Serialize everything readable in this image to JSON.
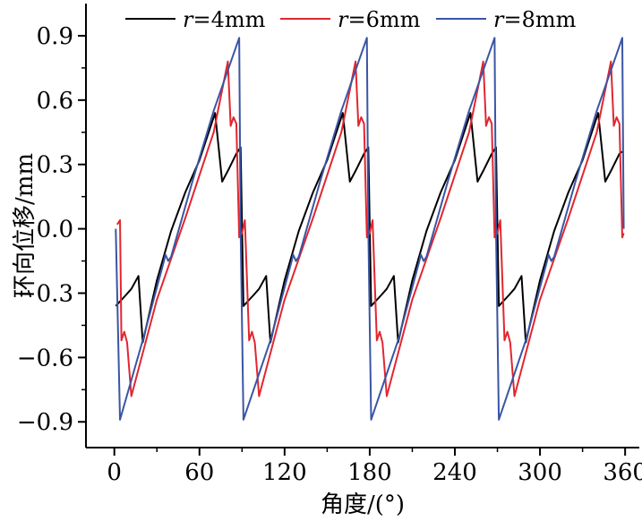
{
  "chart_data": {
    "type": "line",
    "title": "",
    "xlabel": "角度/(°)",
    "ylabel": "环向位移/mm",
    "xlim": [
      -20,
      370
    ],
    "ylim": [
      -1.02,
      1.05
    ],
    "xticks": [
      0,
      60,
      120,
      180,
      240,
      300,
      360
    ],
    "yticks": [
      -0.9,
      -0.6,
      -0.3,
      0.0,
      0.3,
      0.6,
      0.9
    ],
    "xtick_labels": [
      "0",
      "60",
      "120",
      "180",
      "240",
      "300",
      "360"
    ],
    "ytick_labels": [
      "−0.9",
      "−0.6",
      "−0.3",
      "0.0",
      "0.3",
      "0.6",
      "0.9"
    ],
    "grid": false,
    "legend_position": "top",
    "series": [
      {
        "name": "r=4mm",
        "legend_var": "r",
        "legend_rest": "=4mm",
        "color": "#000000",
        "points": [
          [
            1,
            -0.36
          ],
          [
            8,
            -0.31
          ],
          [
            12,
            -0.28
          ],
          [
            17,
            -0.22
          ],
          [
            20,
            -0.53
          ],
          [
            30,
            -0.24
          ],
          [
            40,
            -0.01
          ],
          [
            50,
            0.17
          ],
          [
            60,
            0.32
          ],
          [
            71,
            0.54
          ],
          [
            76,
            0.22
          ],
          [
            80,
            0.27
          ],
          [
            86,
            0.35
          ],
          [
            89,
            0.38
          ],
          [
            91,
            -0.36
          ],
          [
            98,
            -0.31
          ],
          [
            102,
            -0.28
          ],
          [
            107,
            -0.22
          ],
          [
            110,
            -0.53
          ],
          [
            120,
            -0.24
          ],
          [
            130,
            -0.01
          ],
          [
            140,
            0.17
          ],
          [
            150,
            0.32
          ],
          [
            161,
            0.54
          ],
          [
            166,
            0.22
          ],
          [
            170,
            0.27
          ],
          [
            176,
            0.35
          ],
          [
            179,
            0.38
          ],
          [
            181,
            -0.36
          ],
          [
            188,
            -0.31
          ],
          [
            192,
            -0.28
          ],
          [
            197,
            -0.22
          ],
          [
            200,
            -0.53
          ],
          [
            210,
            -0.24
          ],
          [
            220,
            -0.01
          ],
          [
            230,
            0.17
          ],
          [
            240,
            0.32
          ],
          [
            251,
            0.54
          ],
          [
            256,
            0.22
          ],
          [
            260,
            0.27
          ],
          [
            266,
            0.35
          ],
          [
            269,
            0.38
          ],
          [
            271,
            -0.36
          ],
          [
            278,
            -0.31
          ],
          [
            282,
            -0.28
          ],
          [
            287,
            -0.22
          ],
          [
            290,
            -0.53
          ],
          [
            300,
            -0.24
          ],
          [
            310,
            -0.01
          ],
          [
            320,
            0.17
          ],
          [
            330,
            0.32
          ],
          [
            341,
            0.54
          ],
          [
            346,
            0.22
          ],
          [
            350,
            0.27
          ],
          [
            356,
            0.35
          ],
          [
            358,
            0.36
          ]
        ]
      },
      {
        "name": "r=6mm",
        "legend_var": "r",
        "legend_rest": "=6mm",
        "color": "#e2262f",
        "points": [
          [
            2,
            0.02
          ],
          [
            4,
            0.04
          ],
          [
            5,
            -0.52
          ],
          [
            7,
            -0.48
          ],
          [
            9,
            -0.53
          ],
          [
            12,
            -0.78
          ],
          [
            30,
            -0.33
          ],
          [
            50,
            0.05
          ],
          [
            70,
            0.45
          ],
          [
            80,
            0.78
          ],
          [
            82,
            0.48
          ],
          [
            84,
            0.52
          ],
          [
            86,
            0.49
          ],
          [
            88,
            -0.04
          ],
          [
            90,
            -0.02
          ],
          [
            92,
            0.04
          ],
          [
            95,
            -0.52
          ],
          [
            97,
            -0.48
          ],
          [
            99,
            -0.53
          ],
          [
            102,
            -0.78
          ],
          [
            120,
            -0.33
          ],
          [
            140,
            0.05
          ],
          [
            160,
            0.45
          ],
          [
            170,
            0.78
          ],
          [
            172,
            0.48
          ],
          [
            174,
            0.52
          ],
          [
            176,
            0.49
          ],
          [
            178,
            -0.04
          ],
          [
            180,
            -0.02
          ],
          [
            182,
            0.04
          ],
          [
            185,
            -0.52
          ],
          [
            187,
            -0.48
          ],
          [
            189,
            -0.53
          ],
          [
            192,
            -0.78
          ],
          [
            210,
            -0.33
          ],
          [
            230,
            0.05
          ],
          [
            250,
            0.45
          ],
          [
            260,
            0.78
          ],
          [
            262,
            0.48
          ],
          [
            264,
            0.52
          ],
          [
            266,
            0.49
          ],
          [
            268,
            -0.04
          ],
          [
            270,
            -0.02
          ],
          [
            272,
            0.04
          ],
          [
            275,
            -0.52
          ],
          [
            277,
            -0.48
          ],
          [
            279,
            -0.53
          ],
          [
            282,
            -0.78
          ],
          [
            300,
            -0.33
          ],
          [
            320,
            0.05
          ],
          [
            340,
            0.45
          ],
          [
            350,
            0.78
          ],
          [
            352,
            0.48
          ],
          [
            354,
            0.52
          ],
          [
            356,
            0.49
          ],
          [
            358,
            -0.04
          ],
          [
            359,
            -0.02
          ]
        ]
      },
      {
        "name": "r=8mm",
        "legend_var": "r",
        "legend_rest": "=8mm",
        "color": "#3a55a4",
        "points": [
          [
            1,
            0.0
          ],
          [
            4,
            -0.89
          ],
          [
            20,
            -0.52
          ],
          [
            35,
            -0.15
          ],
          [
            36,
            -0.12
          ],
          [
            38,
            -0.15
          ],
          [
            40,
            -0.13
          ],
          [
            55,
            0.22
          ],
          [
            70,
            0.55
          ],
          [
            88,
            0.89
          ],
          [
            89,
            0.0
          ],
          [
            91,
            -0.89
          ],
          [
            110,
            -0.52
          ],
          [
            125,
            -0.15
          ],
          [
            126,
            -0.12
          ],
          [
            128,
            -0.15
          ],
          [
            130,
            -0.13
          ],
          [
            145,
            0.22
          ],
          [
            160,
            0.55
          ],
          [
            178,
            0.89
          ],
          [
            179,
            0.0
          ],
          [
            181,
            -0.89
          ],
          [
            200,
            -0.52
          ],
          [
            215,
            -0.15
          ],
          [
            216,
            -0.12
          ],
          [
            218,
            -0.15
          ],
          [
            220,
            -0.13
          ],
          [
            235,
            0.22
          ],
          [
            250,
            0.55
          ],
          [
            268,
            0.89
          ],
          [
            269,
            0.0
          ],
          [
            271,
            -0.89
          ],
          [
            290,
            -0.52
          ],
          [
            305,
            -0.15
          ],
          [
            306,
            -0.12
          ],
          [
            308,
            -0.15
          ],
          [
            310,
            -0.13
          ],
          [
            325,
            0.22
          ],
          [
            340,
            0.55
          ],
          [
            358,
            0.89
          ],
          [
            359,
            0.0
          ]
        ]
      }
    ]
  }
}
